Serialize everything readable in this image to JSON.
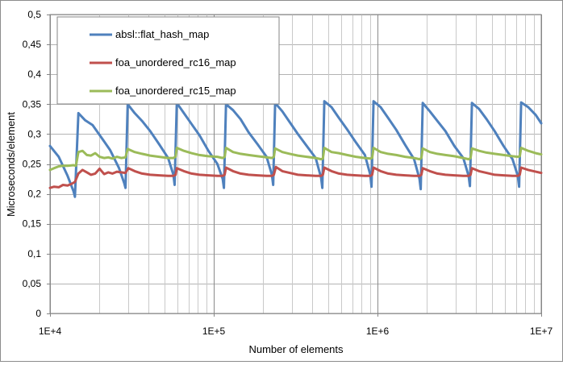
{
  "chart_data": {
    "type": "line",
    "xscale": "log",
    "xlim": [
      10000,
      10000000
    ],
    "ylim": [
      0,
      0.5
    ],
    "xlabel": "Number of elements",
    "ylabel": "Microseconds/element",
    "grid": true,
    "legend_position": "top-left",
    "x_tick_labels": [
      "1E+4",
      "1E+5",
      "1E+6",
      "1E+7"
    ],
    "y_tick_labels": [
      "0",
      "0,05",
      "0,1",
      "0,15",
      "0,2",
      "0,25",
      "0,3",
      "0,35",
      "0,4",
      "0,45",
      "0,5"
    ],
    "series": [
      {
        "name": "absl::flat_hash_map",
        "color": "#4f81bd",
        "points": [
          [
            10000,
            0.28
          ],
          [
            11300,
            0.262
          ],
          [
            12800,
            0.23
          ],
          [
            13900,
            0.205
          ],
          [
            14200,
            0.195
          ],
          [
            14900,
            0.335
          ],
          [
            16400,
            0.323
          ],
          [
            18200,
            0.315
          ],
          [
            20500,
            0.295
          ],
          [
            23300,
            0.273
          ],
          [
            26400,
            0.243
          ],
          [
            28400,
            0.218
          ],
          [
            28900,
            0.21
          ],
          [
            29800,
            0.35
          ],
          [
            32900,
            0.335
          ],
          [
            36500,
            0.322
          ],
          [
            40900,
            0.305
          ],
          [
            46400,
            0.283
          ],
          [
            52600,
            0.26
          ],
          [
            56700,
            0.232
          ],
          [
            57700,
            0.215
          ],
          [
            59500,
            0.352
          ],
          [
            65700,
            0.335
          ],
          [
            73100,
            0.317
          ],
          [
            81800,
            0.298
          ],
          [
            92800,
            0.272
          ],
          [
            105200,
            0.25
          ],
          [
            113400,
            0.225
          ],
          [
            115400,
            0.21
          ],
          [
            118800,
            0.35
          ],
          [
            131200,
            0.34
          ],
          [
            145800,
            0.325
          ],
          [
            163300,
            0.303
          ],
          [
            185200,
            0.283
          ],
          [
            210100,
            0.262
          ],
          [
            226600,
            0.232
          ],
          [
            230600,
            0.215
          ],
          [
            237200,
            0.352
          ],
          [
            262200,
            0.338
          ],
          [
            291200,
            0.32
          ],
          [
            326300,
            0.3
          ],
          [
            370000,
            0.28
          ],
          [
            419500,
            0.26
          ],
          [
            452500,
            0.227
          ],
          [
            460500,
            0.21
          ],
          [
            473800,
            0.355
          ],
          [
            523600,
            0.345
          ],
          [
            581700,
            0.327
          ],
          [
            651800,
            0.308
          ],
          [
            739000,
            0.286
          ],
          [
            837900,
            0.265
          ],
          [
            903700,
            0.232
          ],
          [
            919800,
            0.212
          ],
          [
            946300,
            0.355
          ],
          [
            1045800,
            0.345
          ],
          [
            1161700,
            0.327
          ],
          [
            1301800,
            0.307
          ],
          [
            1476000,
            0.282
          ],
          [
            1673800,
            0.258
          ],
          [
            1805000,
            0.225
          ],
          [
            1837000,
            0.208
          ],
          [
            1889900,
            0.352
          ],
          [
            2088600,
            0.338
          ],
          [
            2320000,
            0.322
          ],
          [
            2600000,
            0.305
          ],
          [
            2948000,
            0.28
          ],
          [
            3343000,
            0.26
          ],
          [
            3604000,
            0.23
          ],
          [
            3669000,
            0.213
          ],
          [
            3774000,
            0.352
          ],
          [
            4171000,
            0.342
          ],
          [
            4634000,
            0.325
          ],
          [
            5193000,
            0.305
          ],
          [
            5887000,
            0.28
          ],
          [
            6676000,
            0.258
          ],
          [
            7198000,
            0.23
          ],
          [
            7328000,
            0.212
          ],
          [
            7537000,
            0.353
          ],
          [
            8331000,
            0.345
          ],
          [
            9254000,
            0.332
          ],
          [
            10000000,
            0.318
          ]
        ]
      },
      {
        "name": "foa_unordered_rc16_map",
        "color": "#c0504d",
        "points": [
          [
            10000,
            0.21
          ],
          [
            10600,
            0.212
          ],
          [
            11300,
            0.211
          ],
          [
            12000,
            0.215
          ],
          [
            12800,
            0.214
          ],
          [
            13600,
            0.217
          ],
          [
            14200,
            0.22
          ],
          [
            14900,
            0.234
          ],
          [
            15800,
            0.24
          ],
          [
            16800,
            0.236
          ],
          [
            17800,
            0.232
          ],
          [
            18900,
            0.234
          ],
          [
            20100,
            0.242
          ],
          [
            21400,
            0.233
          ],
          [
            22700,
            0.236
          ],
          [
            24100,
            0.234
          ],
          [
            25600,
            0.237
          ],
          [
            27200,
            0.236
          ],
          [
            28900,
            0.235
          ],
          [
            30100,
            0.243
          ],
          [
            32900,
            0.238
          ],
          [
            36500,
            0.234
          ],
          [
            40900,
            0.232
          ],
          [
            46400,
            0.231
          ],
          [
            52600,
            0.23
          ],
          [
            56700,
            0.23
          ],
          [
            58500,
            0.232
          ],
          [
            59500,
            0.243
          ],
          [
            65700,
            0.238
          ],
          [
            73100,
            0.234
          ],
          [
            81800,
            0.232
          ],
          [
            92800,
            0.231
          ],
          [
            105200,
            0.23
          ],
          [
            113400,
            0.23
          ],
          [
            116500,
            0.232
          ],
          [
            118800,
            0.244
          ],
          [
            131200,
            0.238
          ],
          [
            145800,
            0.234
          ],
          [
            163300,
            0.232
          ],
          [
            185200,
            0.231
          ],
          [
            210100,
            0.23
          ],
          [
            226600,
            0.23
          ],
          [
            232800,
            0.232
          ],
          [
            239700,
            0.245
          ],
          [
            262200,
            0.238
          ],
          [
            291200,
            0.235
          ],
          [
            326300,
            0.232
          ],
          [
            370000,
            0.231
          ],
          [
            419500,
            0.23
          ],
          [
            452500,
            0.23
          ],
          [
            464200,
            0.232
          ],
          [
            473800,
            0.244
          ],
          [
            523600,
            0.238
          ],
          [
            581700,
            0.234
          ],
          [
            651800,
            0.232
          ],
          [
            739000,
            0.231
          ],
          [
            837900,
            0.23
          ],
          [
            903700,
            0.23
          ],
          [
            928300,
            0.232
          ],
          [
            946300,
            0.244
          ],
          [
            1045800,
            0.238
          ],
          [
            1161700,
            0.234
          ],
          [
            1301800,
            0.232
          ],
          [
            1476000,
            0.231
          ],
          [
            1673800,
            0.23
          ],
          [
            1805000,
            0.23
          ],
          [
            1854000,
            0.232
          ],
          [
            1889900,
            0.243
          ],
          [
            2088600,
            0.238
          ],
          [
            2320000,
            0.234
          ],
          [
            2600000,
            0.232
          ],
          [
            2948000,
            0.231
          ],
          [
            3343000,
            0.23
          ],
          [
            3604000,
            0.23
          ],
          [
            3702000,
            0.232
          ],
          [
            3774000,
            0.243
          ],
          [
            4171000,
            0.238
          ],
          [
            4634000,
            0.235
          ],
          [
            5193000,
            0.232
          ],
          [
            5887000,
            0.231
          ],
          [
            6676000,
            0.23
          ],
          [
            7198000,
            0.23
          ],
          [
            7394000,
            0.232
          ],
          [
            7537000,
            0.244
          ],
          [
            8331000,
            0.24
          ],
          [
            9254000,
            0.237
          ],
          [
            10000000,
            0.235
          ]
        ]
      },
      {
        "name": "foa_unordered_rc15_map",
        "color": "#9bbb59",
        "points": [
          [
            10000,
            0.24
          ],
          [
            10600,
            0.243
          ],
          [
            11300,
            0.246
          ],
          [
            12000,
            0.247
          ],
          [
            12800,
            0.247
          ],
          [
            13900,
            0.248
          ],
          [
            14400,
            0.247
          ],
          [
            14900,
            0.27
          ],
          [
            15800,
            0.272
          ],
          [
            16800,
            0.265
          ],
          [
            17800,
            0.264
          ],
          [
            18900,
            0.268
          ],
          [
            20100,
            0.262
          ],
          [
            21400,
            0.26
          ],
          [
            22700,
            0.261
          ],
          [
            24100,
            0.259
          ],
          [
            25600,
            0.262
          ],
          [
            27200,
            0.26
          ],
          [
            28900,
            0.261
          ],
          [
            29800,
            0.275
          ],
          [
            32900,
            0.27
          ],
          [
            36500,
            0.267
          ],
          [
            40900,
            0.264
          ],
          [
            46400,
            0.262
          ],
          [
            52600,
            0.26
          ],
          [
            56700,
            0.26
          ],
          [
            58500,
            0.262
          ],
          [
            59500,
            0.277
          ],
          [
            65700,
            0.272
          ],
          [
            73100,
            0.268
          ],
          [
            81800,
            0.265
          ],
          [
            92800,
            0.263
          ],
          [
            105200,
            0.262
          ],
          [
            113400,
            0.26
          ],
          [
            116500,
            0.262
          ],
          [
            118800,
            0.277
          ],
          [
            131200,
            0.27
          ],
          [
            145800,
            0.267
          ],
          [
            163300,
            0.265
          ],
          [
            185200,
            0.263
          ],
          [
            210100,
            0.261
          ],
          [
            226600,
            0.26
          ],
          [
            232800,
            0.262
          ],
          [
            237200,
            0.276
          ],
          [
            262200,
            0.27
          ],
          [
            291200,
            0.267
          ],
          [
            326300,
            0.264
          ],
          [
            370000,
            0.262
          ],
          [
            419500,
            0.26
          ],
          [
            452500,
            0.258
          ],
          [
            464200,
            0.259
          ],
          [
            473800,
            0.277
          ],
          [
            523600,
            0.27
          ],
          [
            581700,
            0.268
          ],
          [
            651800,
            0.265
          ],
          [
            739000,
            0.262
          ],
          [
            837900,
            0.26
          ],
          [
            903700,
            0.259
          ],
          [
            928300,
            0.26
          ],
          [
            946300,
            0.277
          ],
          [
            1045800,
            0.27
          ],
          [
            1161700,
            0.267
          ],
          [
            1301800,
            0.265
          ],
          [
            1476000,
            0.262
          ],
          [
            1673800,
            0.26
          ],
          [
            1805000,
            0.258
          ],
          [
            1854000,
            0.26
          ],
          [
            1889900,
            0.276
          ],
          [
            2088600,
            0.27
          ],
          [
            2320000,
            0.267
          ],
          [
            2600000,
            0.265
          ],
          [
            2948000,
            0.263
          ],
          [
            3343000,
            0.26
          ],
          [
            3604000,
            0.258
          ],
          [
            3702000,
            0.26
          ],
          [
            3774000,
            0.276
          ],
          [
            4171000,
            0.272
          ],
          [
            4634000,
            0.269
          ],
          [
            5193000,
            0.267
          ],
          [
            5887000,
            0.265
          ],
          [
            6676000,
            0.263
          ],
          [
            7198000,
            0.262
          ],
          [
            7394000,
            0.263
          ],
          [
            7537000,
            0.277
          ],
          [
            8331000,
            0.272
          ],
          [
            9254000,
            0.268
          ],
          [
            10000000,
            0.266
          ]
        ]
      }
    ]
  }
}
